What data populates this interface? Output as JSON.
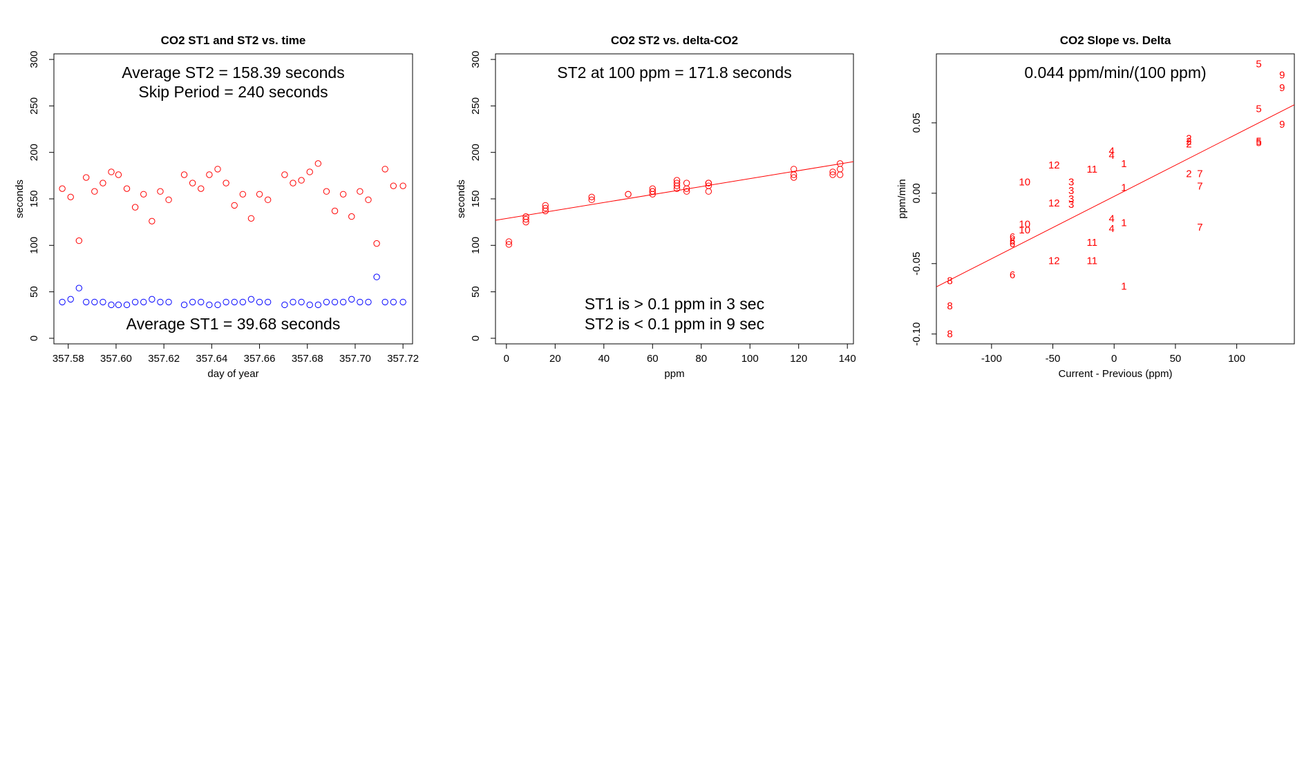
{
  "colors": {
    "st2": "#ff0000",
    "st1": "#0000ff",
    "fit": "#ff0000",
    "labels": "#ff0000"
  },
  "chart_data": [
    {
      "type": "scatter",
      "title": "CO2 ST1 and ST2 vs. time",
      "xlabel": "day of year",
      "ylabel": "seconds",
      "xlim": [
        357.574,
        357.724
      ],
      "ylim": [
        -6,
        306
      ],
      "xticks": [
        357.58,
        357.6,
        357.62,
        357.64,
        357.66,
        357.68,
        357.7,
        357.72
      ],
      "xtick_labels": [
        "357.58",
        "357.60",
        "357.62",
        "357.64",
        "357.66",
        "357.68",
        "357.70",
        "357.72"
      ],
      "yticks": [
        0,
        50,
        100,
        150,
        200,
        250,
        300
      ],
      "ytick_labels": [
        "0",
        "50",
        "100",
        "150",
        "200",
        "250",
        "300"
      ],
      "notes": [
        "Average ST2 =  158.39  seconds",
        "Skip Period =  240  seconds"
      ],
      "bottom_note": "Average ST1 =  39.68  seconds",
      "series": [
        {
          "color": "#ff0000",
          "x": [
            357.5775,
            357.581,
            357.5845,
            357.5875,
            357.591,
            357.5945,
            357.598,
            357.601,
            357.6045,
            357.608,
            357.6115,
            357.615,
            357.6185,
            357.622,
            357.6285,
            357.632,
            357.6355,
            357.639,
            357.6425,
            357.646,
            357.6495,
            357.653,
            357.6565,
            357.66,
            357.6635,
            357.6705,
            357.674,
            357.6775,
            357.681,
            357.6845,
            357.688,
            357.6915,
            357.695,
            357.6985,
            357.702,
            357.7055,
            357.709,
            357.7125,
            357.716,
            357.72
          ],
          "y": [
            161,
            152,
            105,
            173,
            158,
            167,
            179,
            176,
            161,
            141,
            155,
            126,
            158,
            149,
            176,
            167,
            161,
            176,
            182,
            167,
            143,
            155,
            129,
            155,
            149,
            176,
            167,
            170,
            179,
            188,
            158,
            137,
            155,
            131,
            158,
            149,
            102,
            182,
            164,
            164
          ]
        },
        {
          "color": "#0000ff",
          "x": [
            357.5775,
            357.581,
            357.5845,
            357.5875,
            357.591,
            357.5945,
            357.598,
            357.601,
            357.6045,
            357.608,
            357.6115,
            357.615,
            357.6185,
            357.622,
            357.6285,
            357.632,
            357.6355,
            357.639,
            357.6425,
            357.646,
            357.6495,
            357.653,
            357.6565,
            357.66,
            357.6635,
            357.6705,
            357.674,
            357.6775,
            357.681,
            357.6845,
            357.688,
            357.6915,
            357.695,
            357.6985,
            357.702,
            357.7055,
            357.709,
            357.7125,
            357.716,
            357.72
          ],
          "y": [
            39,
            42,
            54,
            39,
            39,
            39,
            36,
            36,
            36,
            39,
            39,
            42,
            39,
            39,
            36,
            39,
            39,
            36,
            36,
            39,
            39,
            39,
            42,
            39,
            39,
            36,
            39,
            39,
            36,
            36,
            39,
            39,
            39,
            42,
            39,
            39,
            66,
            39,
            39,
            39
          ]
        }
      ]
    },
    {
      "type": "scatter",
      "title": "CO2 ST2 vs. delta-CO2",
      "xlabel": "ppm",
      "ylabel": "seconds",
      "xlim": [
        -4.5,
        142.5
      ],
      "ylim": [
        -6,
        306
      ],
      "xticks": [
        0,
        20,
        40,
        60,
        80,
        100,
        120,
        140
      ],
      "xtick_labels": [
        "0",
        "20",
        "40",
        "60",
        "80",
        "100",
        "120",
        "140"
      ],
      "yticks": [
        0,
        50,
        100,
        150,
        200,
        250,
        300
      ],
      "ytick_labels": [
        "0",
        "50",
        "100",
        "150",
        "200",
        "250",
        "300"
      ],
      "notes": [
        "ST2 at 100 ppm =  171.8  seconds"
      ],
      "bottom_notes": [
        "ST1 is > 0.1 ppm in 3 sec",
        "ST2 is < 0.1 ppm in 9 sec"
      ],
      "fit_line": {
        "intercept": 128.9,
        "slope": 0.429
      },
      "series": [
        {
          "color": "#ff0000",
          "x": [
            1,
            1,
            8,
            8,
            8,
            16,
            16,
            16,
            35,
            35,
            50,
            50,
            60,
            60,
            60,
            60,
            70,
            70,
            70,
            70,
            74,
            74,
            74,
            83,
            83,
            83,
            83,
            118,
            118,
            118,
            134,
            134,
            137,
            137,
            137
          ],
          "y": [
            104,
            101,
            131,
            128,
            125,
            143,
            140,
            137,
            152,
            149,
            155,
            155,
            161,
            158,
            155,
            158,
            170,
            167,
            164,
            161,
            167,
            161,
            158,
            167,
            164,
            158,
            167,
            182,
            176,
            173,
            179,
            176,
            188,
            182,
            176
          ]
        }
      ]
    },
    {
      "type": "scatter",
      "title": "CO2 Slope vs. Delta",
      "xlabel": "Current - Previous (ppm)",
      "ylabel": "ppm/min",
      "xlim": [
        -145,
        147
      ],
      "ylim": [
        -0.107,
        0.099
      ],
      "xticks": [
        -100,
        -50,
        0,
        50,
        100
      ],
      "xtick_labels": [
        "-100",
        "-50",
        "0",
        "50",
        "100"
      ],
      "yticks": [
        -0.1,
        -0.05,
        0.0,
        0.05
      ],
      "ytick_labels": [
        "-0.10",
        "-0.05",
        "0.00",
        "0.05"
      ],
      "notes": [
        "0.044  ppm/min/(100 ppm)"
      ],
      "fit_line": {
        "intercept": -0.00224,
        "slope": 0.000443
      },
      "points": [
        {
          "label": "8",
          "x": -134,
          "y": -0.062
        },
        {
          "label": "8",
          "x": -134,
          "y": -0.08
        },
        {
          "label": "8",
          "x": -134,
          "y": -0.1
        },
        {
          "label": "6",
          "x": -83,
          "y": -0.031
        },
        {
          "label": "6",
          "x": -83,
          "y": -0.034
        },
        {
          "label": "6",
          "x": -83,
          "y": -0.036
        },
        {
          "label": "6",
          "x": -83,
          "y": -0.058
        },
        {
          "label": "10",
          "x": -73,
          "y": 0.008
        },
        {
          "label": "10",
          "x": -73,
          "y": -0.022
        },
        {
          "label": "10",
          "x": -73,
          "y": -0.026
        },
        {
          "label": "12",
          "x": -49,
          "y": 0.02
        },
        {
          "label": "12",
          "x": -49,
          "y": -0.007
        },
        {
          "label": "12",
          "x": -49,
          "y": -0.048
        },
        {
          "label": "3",
          "x": -35,
          "y": 0.008
        },
        {
          "label": "3",
          "x": -35,
          "y": 0.002
        },
        {
          "label": "3",
          "x": -35,
          "y": -0.004
        },
        {
          "label": "3",
          "x": -35,
          "y": -0.008
        },
        {
          "label": "11",
          "x": -18,
          "y": 0.017
        },
        {
          "label": "11",
          "x": -18,
          "y": -0.035
        },
        {
          "label": "11",
          "x": -18,
          "y": -0.048
        },
        {
          "label": "4",
          "x": -2,
          "y": 0.03
        },
        {
          "label": "4",
          "x": -2,
          "y": 0.027
        },
        {
          "label": "4",
          "x": -2,
          "y": -0.018
        },
        {
          "label": "4",
          "x": -2,
          "y": -0.025
        },
        {
          "label": "1",
          "x": 8,
          "y": 0.021
        },
        {
          "label": "1",
          "x": 8,
          "y": 0.004
        },
        {
          "label": "1",
          "x": 8,
          "y": -0.021
        },
        {
          "label": "1",
          "x": 8,
          "y": -0.066
        },
        {
          "label": "2",
          "x": 61,
          "y": 0.039
        },
        {
          "label": "2",
          "x": 61,
          "y": 0.037
        },
        {
          "label": "2",
          "x": 61,
          "y": 0.035
        },
        {
          "label": "2",
          "x": 61,
          "y": 0.014
        },
        {
          "label": "7",
          "x": 70,
          "y": 0.014
        },
        {
          "label": "7",
          "x": 70,
          "y": 0.005
        },
        {
          "label": "7",
          "x": 70,
          "y": -0.024
        },
        {
          "label": "5",
          "x": 118,
          "y": 0.092
        },
        {
          "label": "5",
          "x": 118,
          "y": 0.06
        },
        {
          "label": "5",
          "x": 118,
          "y": 0.037
        },
        {
          "label": "5",
          "x": 118,
          "y": 0.036
        },
        {
          "label": "9",
          "x": 137,
          "y": 0.084
        },
        {
          "label": "9",
          "x": 137,
          "y": 0.075
        },
        {
          "label": "9",
          "x": 137,
          "y": 0.049
        }
      ]
    }
  ]
}
